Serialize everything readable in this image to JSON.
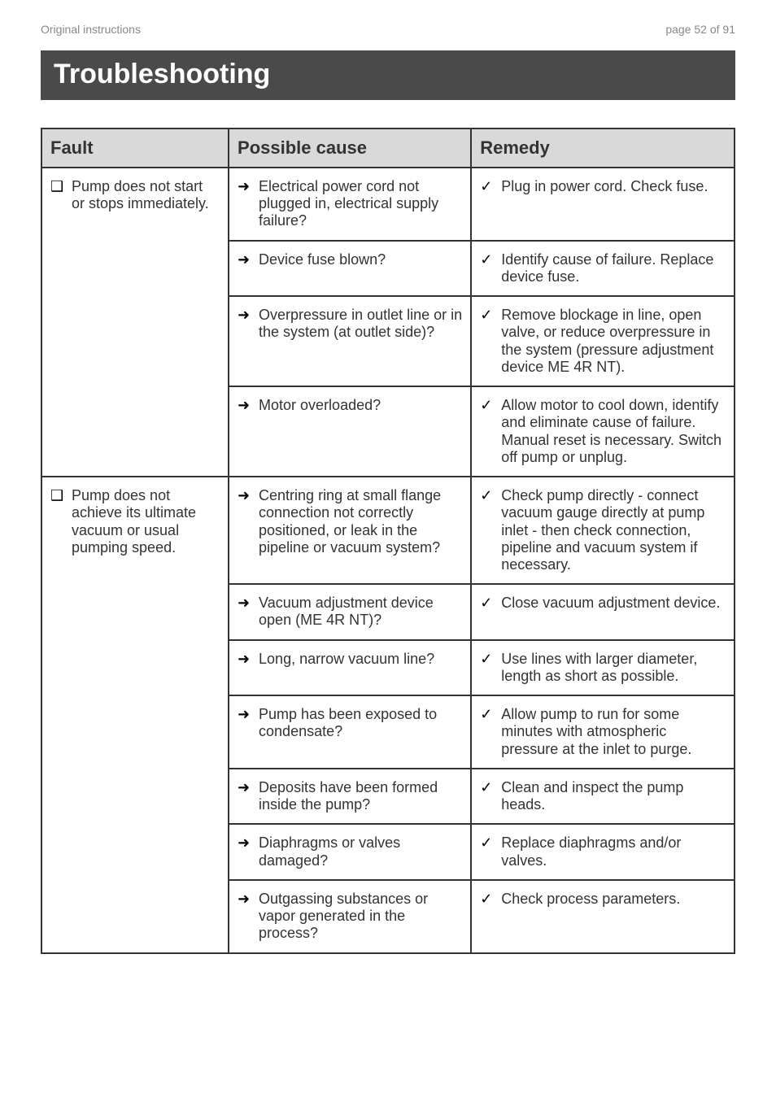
{
  "header": {
    "left": "Original instructions",
    "right": "page 52 of 91"
  },
  "title": "Troubleshooting",
  "columns": [
    "Fault",
    "Possible cause",
    "Remedy"
  ],
  "glyphs": {
    "fault": "❑",
    "cause": "➜",
    "remedy": "✓"
  },
  "colors": {
    "title_bg": "#4a4a4a",
    "title_fg": "#ffffff",
    "th_bg": "#d9d9d9",
    "border": "#333333",
    "header_text": "#888888",
    "body_text": "#333333"
  },
  "fontsizes": {
    "title": 34,
    "th": 22,
    "body": 18,
    "header": 14
  },
  "rows": [
    {
      "fault": "Pump does not start or stops immediately.",
      "pairs": [
        {
          "cause": "Electrical power cord not plugged in, electrical supply failure?",
          "remedy": "Plug in power cord. Check fuse."
        },
        {
          "cause": "Device fuse blown?",
          "remedy": "Identify cause of failure. Replace device fuse."
        },
        {
          "cause": "Overpressure in outlet line or in the system (at outlet side)?",
          "remedy": "Remove blockage in line, open valve, or reduce overpressure in the system (pressure adjustment device ME 4R NT)."
        },
        {
          "cause": "Motor overloaded?",
          "remedy": "Allow motor to cool down, identify and eliminate cause of failure. Manual reset is necessary. Switch off pump or unplug."
        }
      ]
    },
    {
      "fault": "Pump does not achieve its ultimate vacuum or usual pumping speed.",
      "pairs": [
        {
          "cause": "Centring ring at small flange connection not correctly positioned, or leak in the pipeline or vacuum system?",
          "remedy": "Check pump directly - connect vacuum gauge directly at pump inlet - then check connection, pipeline and vacuum system if necessary."
        },
        {
          "cause": "Vacuum adjustment device open (ME 4R NT)?",
          "remedy": "Close vacuum adjustment device."
        },
        {
          "cause": "Long, narrow vacuum line?",
          "remedy": "Use lines with larger diameter, length as short as possible."
        },
        {
          "cause": "Pump has been exposed to condensate?",
          "remedy": "Allow pump to run for some minutes with atmospheric pressure at the inlet to purge."
        },
        {
          "cause": "Deposits have been formed inside the pump?",
          "remedy": "Clean and inspect the pump heads."
        },
        {
          "cause": "Diaphragms or valves damaged?",
          "remedy": "Replace diaphragms and/or valves."
        },
        {
          "cause": "Outgassing substances or vapor generated in the process?",
          "remedy": "Check process parameters."
        }
      ]
    }
  ]
}
